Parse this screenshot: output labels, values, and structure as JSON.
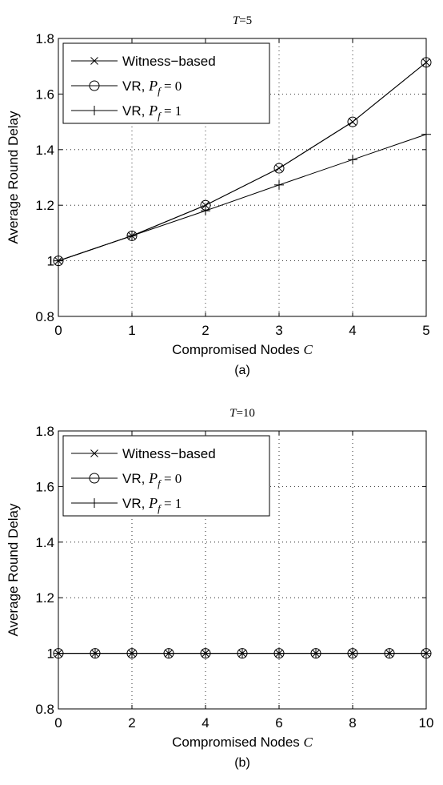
{
  "chart_data": [
    {
      "type": "line",
      "title_var": "T",
      "title_eq": "=5",
      "xlabel": "Compromised Nodes",
      "xlabel_var": "C",
      "ylabel": "Average Round Delay",
      "caption": "(a)",
      "xlim": [
        0,
        5
      ],
      "ylim": [
        0.8,
        1.8
      ],
      "xticks": [
        "0",
        "1",
        "2",
        "3",
        "4",
        "5"
      ],
      "yticks": [
        "0.8",
        "1",
        "1.2",
        "1.4",
        "1.6",
        "1.8"
      ],
      "grid": true,
      "legend_position": "top-left",
      "legend": [
        {
          "text": "Witness−based",
          "marker": "x"
        },
        {
          "text": "VR, ",
          "var": "P",
          "sub": "f",
          "eq": " = 0",
          "marker": "circle"
        },
        {
          "text": "VR, ",
          "var": "P",
          "sub": "f",
          "eq": " = 1",
          "marker": "plus"
        }
      ],
      "series": [
        {
          "marker": "x",
          "x": [
            0,
            1,
            2,
            3,
            4,
            5
          ],
          "y": [
            1.0,
            1.09,
            1.2,
            1.333,
            1.5,
            1.714
          ]
        },
        {
          "marker": "circle",
          "x": [
            0,
            1,
            2,
            3,
            4,
            5
          ],
          "y": [
            1.0,
            1.09,
            1.2,
            1.333,
            1.5,
            1.714
          ]
        },
        {
          "marker": "plus",
          "x": [
            0,
            1,
            2,
            3,
            4,
            5
          ],
          "y": [
            1.0,
            1.09,
            1.18,
            1.273,
            1.364,
            1.455
          ]
        }
      ]
    },
    {
      "type": "line",
      "title_var": "T",
      "title_eq": "=10",
      "xlabel": "Compromised Nodes",
      "xlabel_var": "C",
      "ylabel": "Average Round Delay",
      "caption": "(b)",
      "xlim": [
        0,
        10
      ],
      "ylim": [
        0.8,
        1.8
      ],
      "xticks": [
        "0",
        "2",
        "4",
        "6",
        "8",
        "10"
      ],
      "yticks": [
        "0.8",
        "1",
        "1.2",
        "1.4",
        "1.6",
        "1.8"
      ],
      "grid": true,
      "legend_position": "top-left",
      "legend": [
        {
          "text": "Witness−based",
          "marker": "x"
        },
        {
          "text": "VR, ",
          "var": "P",
          "sub": "f",
          "eq": " = 0",
          "marker": "circle"
        },
        {
          "text": "VR, ",
          "var": "P",
          "sub": "f",
          "eq": " = 1",
          "marker": "plus"
        }
      ],
      "series": [
        {
          "marker": "x",
          "x": [
            0,
            1,
            2,
            3,
            4,
            5,
            6,
            7,
            8,
            9,
            10
          ],
          "y": [
            1,
            1,
            1,
            1,
            1,
            1,
            1,
            1,
            1,
            1,
            1
          ]
        },
        {
          "marker": "circle",
          "x": [
            0,
            1,
            2,
            3,
            4,
            5,
            6,
            7,
            8,
            9,
            10
          ],
          "y": [
            1,
            1,
            1,
            1,
            1,
            1,
            1,
            1,
            1,
            1,
            1
          ]
        },
        {
          "marker": "plus",
          "x": [
            0,
            1,
            2,
            3,
            4,
            5,
            6,
            7,
            8,
            9,
            10
          ],
          "y": [
            1,
            1,
            1,
            1,
            1,
            1,
            1,
            1,
            1,
            1,
            1
          ]
        }
      ]
    }
  ]
}
